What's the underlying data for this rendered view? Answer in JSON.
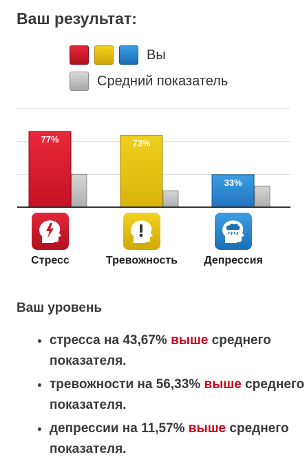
{
  "header": {
    "title": "Ваш результат:"
  },
  "legend": {
    "you_label": "Вы",
    "avg_label": "Средний показатель",
    "colors": {
      "stress": "#d9202f",
      "anxiety": "#e5c014",
      "depression": "#2b86cf",
      "average": "#bdbdbd"
    }
  },
  "chart_data": {
    "type": "bar",
    "categories": [
      "Стресс",
      "Тревожность",
      "Депрессия"
    ],
    "series": [
      {
        "name": "Вы",
        "values": [
          77,
          73,
          33
        ]
      },
      {
        "name": "Средний показатель",
        "values": [
          33.33,
          16.67,
          21.43
        ]
      }
    ],
    "data_labels": [
      "77%",
      "73%",
      "33%"
    ],
    "ylim": [
      0,
      100
    ],
    "grid": true
  },
  "categories": {
    "stress": {
      "label": "Стресс",
      "icon": "stress-head-icon"
    },
    "anxiety": {
      "label": "Тревожность",
      "icon": "anxiety-head-icon"
    },
    "depression": {
      "label": "Депрессия",
      "icon": "depression-head-icon"
    }
  },
  "level": {
    "title": "Ваш уровень",
    "items": [
      {
        "prefix": "стресса на 43,67%",
        "emphasis": "выше",
        "suffix": "среднего показателя."
      },
      {
        "prefix": "тревожности на 56,33%",
        "emphasis": "выше",
        "suffix": "среднего показателя."
      },
      {
        "prefix": "депрессии на 11,57%",
        "emphasis": "выше",
        "suffix": "среднего показателя."
      }
    ]
  }
}
